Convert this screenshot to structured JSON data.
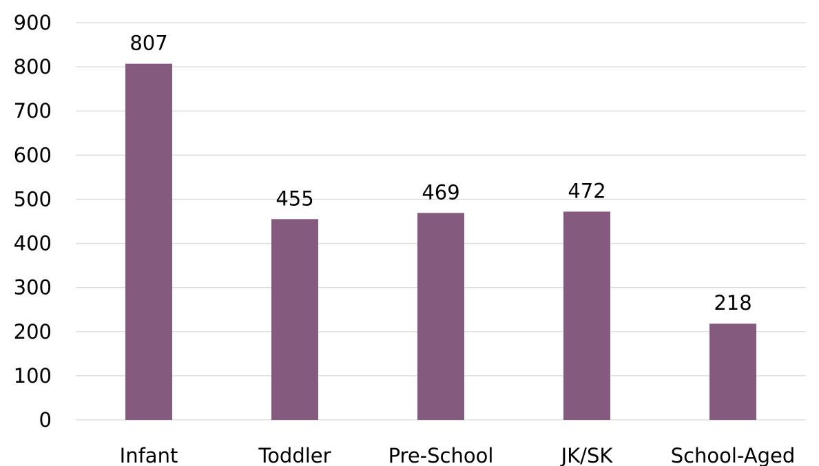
{
  "chart_data": {
    "type": "bar",
    "title": "",
    "xlabel": "",
    "ylabel": "",
    "categories": [
      "Infant",
      "Toddler",
      "Pre-School",
      "JK/SK",
      "School-Aged"
    ],
    "values": [
      807,
      455,
      469,
      472,
      218
    ],
    "data_labels": [
      "807",
      "455",
      "469",
      "472",
      "218"
    ],
    "yticks": [
      0,
      100,
      200,
      300,
      400,
      500,
      600,
      700,
      800,
      900
    ],
    "ylim": [
      0,
      900
    ],
    "grid": true,
    "legend": "none",
    "bar_color": "#845b7f"
  }
}
